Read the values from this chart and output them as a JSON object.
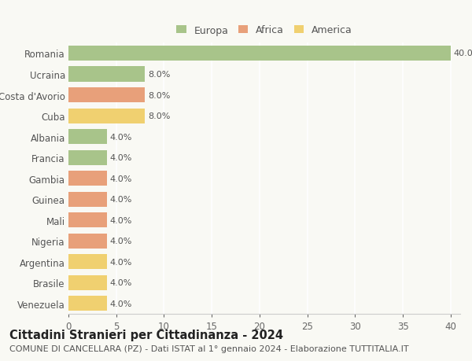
{
  "categories": [
    "Romania",
    "Ucraina",
    "Costa d'Avorio",
    "Cuba",
    "Albania",
    "Francia",
    "Gambia",
    "Guinea",
    "Mali",
    "Nigeria",
    "Argentina",
    "Brasile",
    "Venezuela"
  ],
  "values": [
    40.0,
    8.0,
    8.0,
    8.0,
    4.0,
    4.0,
    4.0,
    4.0,
    4.0,
    4.0,
    4.0,
    4.0,
    4.0
  ],
  "colors": [
    "#a8c48a",
    "#a8c48a",
    "#e8a07a",
    "#f0d070",
    "#a8c48a",
    "#a8c48a",
    "#e8a07a",
    "#e8a07a",
    "#e8a07a",
    "#e8a07a",
    "#f0d070",
    "#f0d070",
    "#f0d070"
  ],
  "continent_labels": [
    "Europa",
    "Africa",
    "America"
  ],
  "continent_colors": [
    "#a8c48a",
    "#e8a07a",
    "#f0d070"
  ],
  "title": "Cittadini Stranieri per Cittadinanza - 2024",
  "subtitle": "COMUNE DI CANCELLARA (PZ) - Dati ISTAT al 1° gennaio 2024 - Elaborazione TUTTITALIA.IT",
  "xlim": [
    0,
    41
  ],
  "xticks": [
    0,
    5,
    10,
    15,
    20,
    25,
    30,
    35,
    40
  ],
  "background_color": "#f9f9f4",
  "grid_color": "#ffffff",
  "bar_label_fontsize": 8,
  "ylabel_fontsize": 8.5,
  "xlabel_fontsize": 8.5,
  "title_fontsize": 10.5,
  "subtitle_fontsize": 8
}
